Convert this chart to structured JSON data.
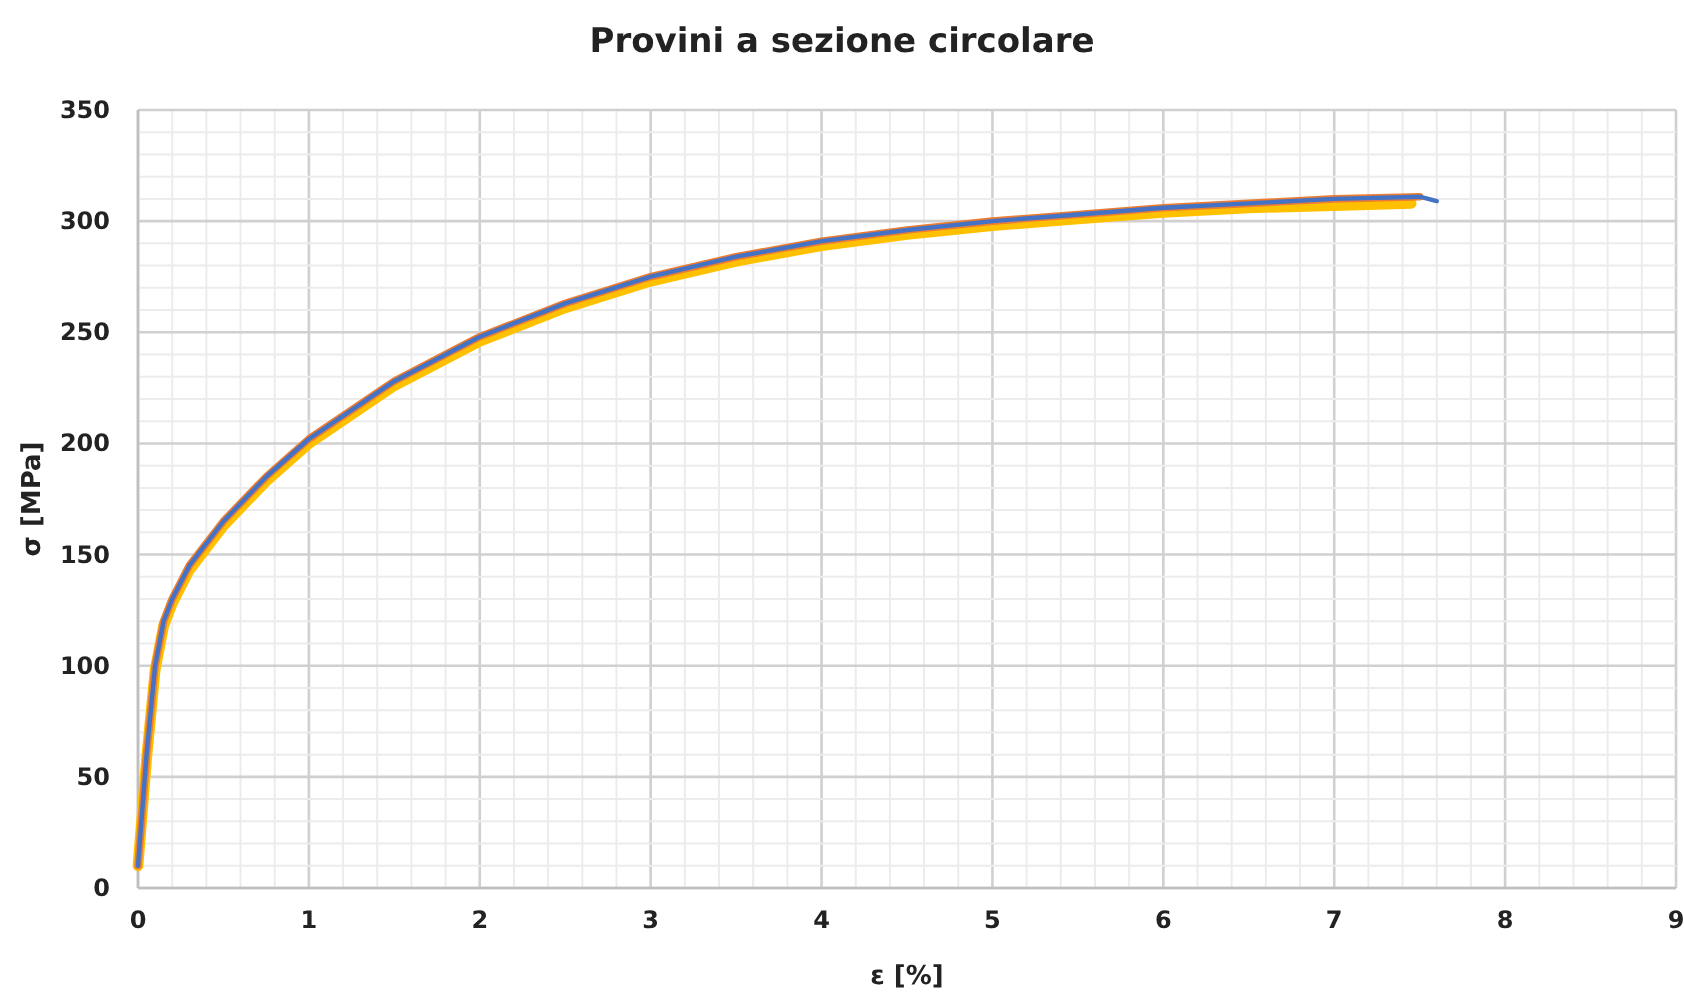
{
  "chart_data": {
    "type": "line",
    "title": "Provini a sezione circolare",
    "xlabel": "ε [%]",
    "ylabel": "σ [MPa]",
    "xlim": [
      0,
      9
    ],
    "ylim": [
      0,
      350
    ],
    "xticks": [
      0,
      {
        "value": 0.2,
        "label": null
      },
      {
        "value": 0.4,
        "label": null
      },
      {
        "value": 0.6,
        "label": null
      },
      {
        "value": 0.8,
        "label": null
      },
      1,
      {
        "value": 1.2,
        "label": null
      },
      {
        "value": 1.4,
        "label": null
      },
      {
        "value": 1.6,
        "label": null
      },
      {
        "value": 1.8,
        "label": null
      },
      2,
      {
        "value": 2.2,
        "label": null
      },
      {
        "value": 2.4,
        "label": null
      },
      {
        "value": 2.6,
        "label": null
      },
      {
        "value": 2.8,
        "label": null
      },
      3,
      {
        "value": 3.2,
        "label": null
      },
      {
        "value": 3.4,
        "label": null
      },
      {
        "value": 3.6,
        "label": null
      },
      {
        "value": 3.8,
        "label": null
      },
      4,
      {
        "value": 4.2,
        "label": null
      },
      {
        "value": 4.4,
        "label": null
      },
      {
        "value": 4.6,
        "label": null
      },
      {
        "value": 4.8,
        "label": null
      },
      5,
      {
        "value": 5.2,
        "label": null
      },
      {
        "value": 5.4,
        "label": null
      },
      {
        "value": 5.6,
        "label": null
      },
      {
        "value": 5.8,
        "label": null
      },
      6,
      {
        "value": 6.2,
        "label": null
      },
      {
        "value": 6.4,
        "label": null
      },
      {
        "value": 6.6,
        "label": null
      },
      {
        "value": 6.8,
        "label": null
      },
      7,
      {
        "value": 7.2,
        "label": null
      },
      {
        "value": 7.4,
        "label": null
      },
      {
        "value": 7.6,
        "label": null
      },
      {
        "value": 7.8,
        "label": null
      },
      8,
      {
        "value": 8.2,
        "label": null
      },
      {
        "value": 8.4,
        "label": null
      },
      {
        "value": 8.6,
        "label": null
      },
      {
        "value": 8.8,
        "label": null
      },
      9
    ],
    "yticks": [
      0,
      {
        "value": 10,
        "label": null
      },
      {
        "value": 20,
        "label": null
      },
      {
        "value": 30,
        "label": null
      },
      {
        "value": 40,
        "label": null
      },
      50,
      {
        "value": 60,
        "label": null
      },
      {
        "value": 70,
        "label": null
      },
      {
        "value": 80,
        "label": null
      },
      {
        "value": 90,
        "label": null
      },
      100,
      {
        "value": 110,
        "label": null
      },
      {
        "value": 120,
        "label": null
      },
      {
        "value": 130,
        "label": null
      },
      {
        "value": 140,
        "label": null
      },
      150,
      {
        "value": 160,
        "label": null
      },
      {
        "value": 170,
        "label": null
      },
      {
        "value": 180,
        "label": null
      },
      {
        "value": 190,
        "label": null
      },
      200,
      {
        "value": 210,
        "label": null
      },
      {
        "value": 220,
        "label": null
      },
      {
        "value": 230,
        "label": null
      },
      {
        "value": 240,
        "label": null
      },
      250,
      {
        "value": 260,
        "label": null
      },
      {
        "value": 270,
        "label": null
      },
      {
        "value": 280,
        "label": null
      },
      {
        "value": 290,
        "label": null
      },
      300,
      {
        "value": 310,
        "label": null
      },
      {
        "value": 320,
        "label": null
      },
      {
        "value": 330,
        "label": null
      },
      {
        "value": 340,
        "label": null
      },
      350
    ],
    "grid": true,
    "line_style": "solid",
    "marker": "none",
    "series": [
      {
        "color": "#ffc000",
        "x": [
          0,
          0.05,
          0.1,
          0.15,
          0.2,
          0.3,
          0.5,
          0.75,
          1,
          1.5,
          2,
          2.5,
          3,
          3.5,
          4,
          4.5,
          5,
          5.5,
          6,
          6.5,
          7,
          7.45
        ],
        "values": [
          10,
          58,
          98,
          118,
          128,
          143,
          163,
          183,
          200,
          226,
          246,
          261,
          273,
          282,
          289,
          294,
          298,
          301,
          304,
          306,
          307,
          308
        ]
      },
      {
        "color": "#ed7d31",
        "x": [
          0,
          0.05,
          0.1,
          0.15,
          0.2,
          0.3,
          0.5,
          0.75,
          1,
          1.5,
          2,
          2.5,
          3,
          3.5,
          4,
          4.5,
          5,
          5.5,
          6,
          6.5,
          7,
          7.5
        ],
        "values": [
          10,
          60,
          100,
          120,
          130,
          145,
          165,
          185,
          202,
          228,
          248,
          263,
          275,
          284,
          291,
          296,
          300,
          303,
          306,
          308,
          310,
          311
        ]
      },
      {
        "color": "#4472c4",
        "x": [
          0,
          0.05,
          0.1,
          0.15,
          0.2,
          0.3,
          0.5,
          0.75,
          1,
          1.5,
          2,
          2.5,
          3,
          3.5,
          4,
          4.5,
          5,
          5.5,
          6,
          6.5,
          7,
          7.5,
          7.6
        ],
        "values": [
          10,
          60,
          100,
          120,
          130,
          145,
          165,
          185,
          202,
          228,
          248,
          263,
          275,
          284,
          291,
          296,
          300,
          303,
          306,
          308,
          310,
          311,
          309
        ]
      }
    ]
  }
}
